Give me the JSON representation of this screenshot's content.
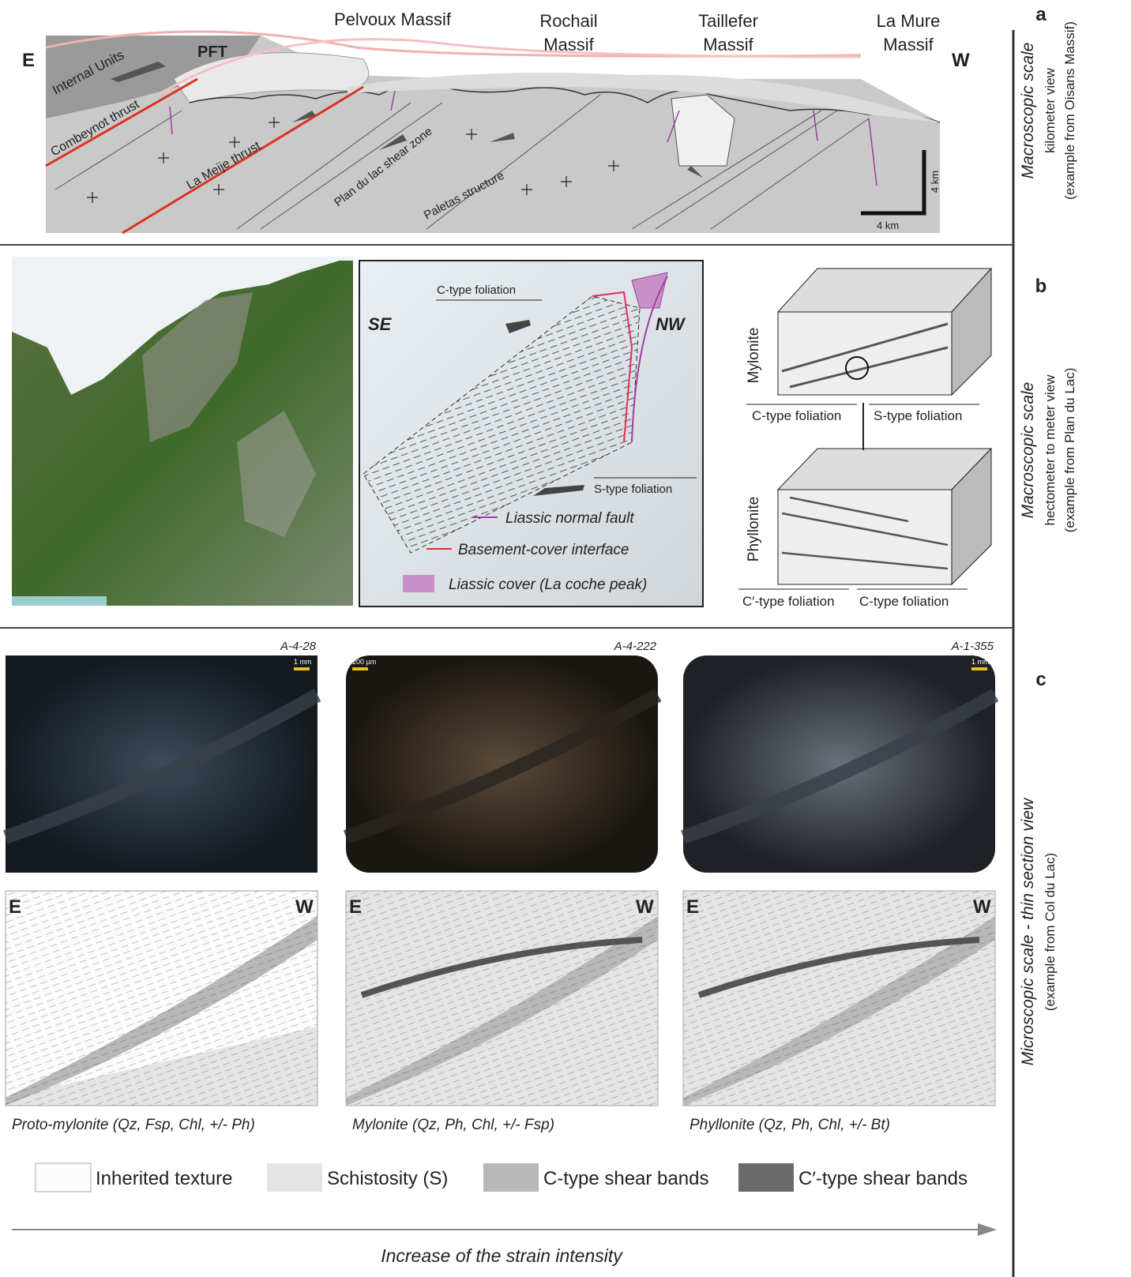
{
  "panel_a": {
    "letter": "a",
    "side_title": "Macroscopic scale",
    "side_lines": [
      "kilometer view",
      "(example from Oisans Massif)"
    ],
    "east": "E",
    "west": "W",
    "massifs": [
      [
        "Pelvoux Massif"
      ],
      [
        "Rochail",
        "Massif"
      ],
      [
        "Taillefer",
        "Massif"
      ],
      [
        "La Mure",
        "Massif"
      ]
    ],
    "structures": [
      "Internal Units",
      "PFT",
      "Combeynot thrust",
      "La Meije thrust",
      "Plan du lac shear zone",
      "Paletas structure"
    ],
    "scale": [
      "4 km",
      "4 km"
    ]
  },
  "panel_b": {
    "letter": "b",
    "side_title": "Macroscopic scale",
    "side_lines": [
      "hectometer to meter view",
      "(example from Plan du Lac)"
    ],
    "sketch": {
      "left": "SE",
      "right": "NW",
      "c_foliation": "C-type foliation",
      "s_foliation": "S-type foliation"
    },
    "legend": [
      "Liassic normal fault",
      "Basement-cover interface",
      "Liassic cover (La coche peak)"
    ],
    "blocks": [
      {
        "name": "Mylonite",
        "labels": [
          "C-type foliation",
          "S-type foliation"
        ]
      },
      {
        "name": "Phyllonite",
        "labels": [
          "C′-type foliation",
          "C-type foliation"
        ]
      }
    ]
  },
  "panel_c": {
    "letter": "c",
    "side_title": "Microscopic scale - thin section view",
    "side_line": "(example from Col du Lac)",
    "samples": [
      {
        "id": "A-4-28",
        "scale": "1 mm",
        "caption": "Proto-mylonite (Qz, Fsp, Chl, +/- Ph)"
      },
      {
        "id": "A-4-222",
        "scale": "200 µm",
        "caption": "Mylonite (Qz, Ph, Chl, +/- Fsp)"
      },
      {
        "id": "A-1-355",
        "scale": "1 mm",
        "caption": "Phyllonite (Qz, Ph, Chl, +/- Bt)"
      }
    ],
    "east": "E",
    "west": "W",
    "legend": [
      "Inherited texture",
      "Schistosity (S)",
      "C-type shear bands",
      "C′-type shear bands"
    ],
    "arrow_label": "Increase of the strain intensity"
  }
}
